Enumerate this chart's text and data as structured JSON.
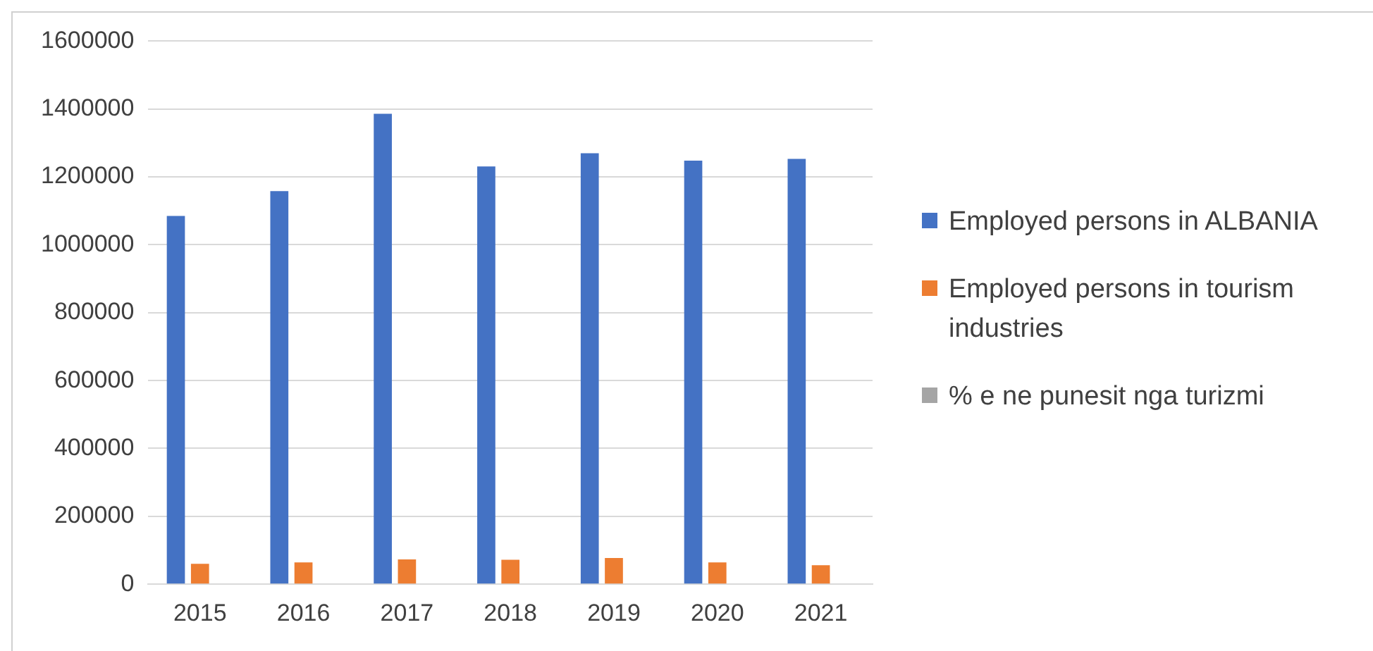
{
  "chart_data": {
    "type": "bar",
    "categories": [
      "2015",
      "2016",
      "2017",
      "2018",
      "2019",
      "2020",
      "2021"
    ],
    "series": [
      {
        "name": "Employed persons in ALBANIA",
        "color": "#4472c4",
        "values": [
          1085000,
          1158000,
          1386000,
          1231000,
          1270000,
          1248000,
          1253000
        ]
      },
      {
        "name": "Employed persons in tourism industries",
        "color": "#ed7d31",
        "values": [
          60000,
          64000,
          73000,
          72000,
          77000,
          64000,
          56000
        ]
      },
      {
        "name": "% e ne punesit nga turizmi",
        "color": "#a5a5a5",
        "values": [
          0,
          0,
          0,
          0,
          0,
          0,
          0
        ]
      }
    ],
    "ylim": [
      0,
      1600000
    ],
    "yticks": [
      0,
      200000,
      400000,
      600000,
      800000,
      1000000,
      1200000,
      1400000,
      1600000
    ],
    "grid": "y",
    "legend": "right"
  }
}
